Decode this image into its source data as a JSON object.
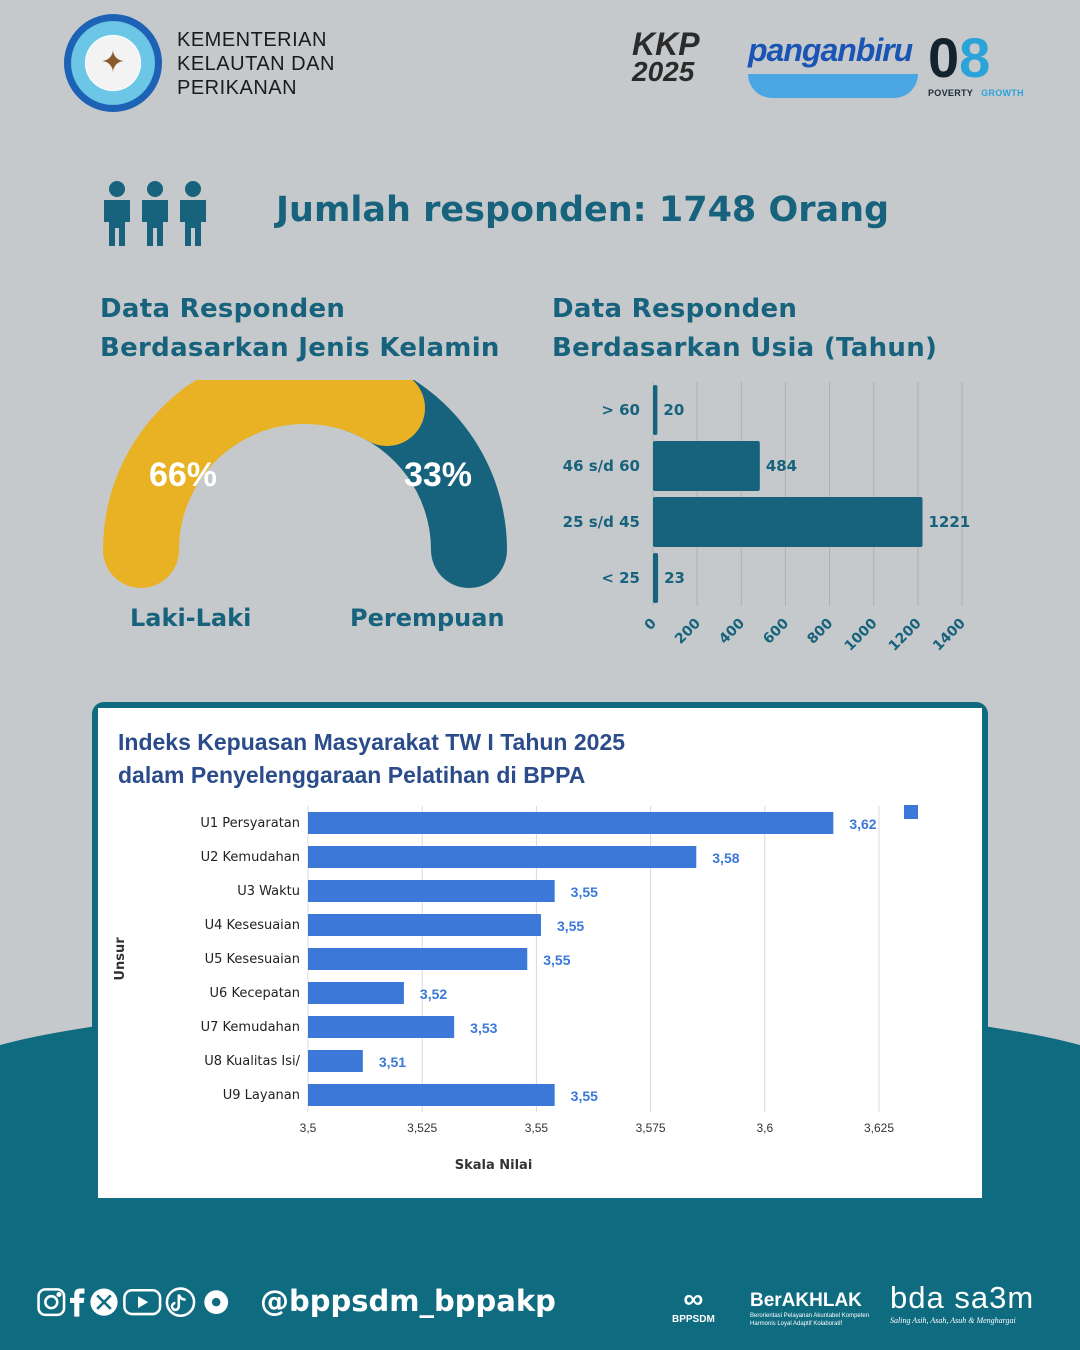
{
  "header": {
    "org_line1": "KEMENTERIAN",
    "org_line2": "KELAUTAN DAN",
    "org_line3": "PERIKANAN",
    "brand_kkp": "KKP",
    "brand_kkp_year": "2025",
    "brand_panganbiru": "panganbiru",
    "brand_08": "08",
    "brand_poverty": "POVERTY",
    "brand_growth": "GROWTH"
  },
  "headline": "Jumlah responden: 1748 Orang",
  "gender": {
    "title_line1": "Data Responden",
    "title_line2": "Berdasarkan Jenis Kelamin",
    "male_pct_label": "66%",
    "female_pct_label": "33%",
    "male_label": "Laki-Laki",
    "female_label": "Perempuan",
    "male_value": 66,
    "female_value": 33,
    "male_color": "#e8b224",
    "female_color": "#17627c"
  },
  "age": {
    "title_line1": "Data Responden",
    "title_line2": "Berdasarkan Usia (Tahun)"
  },
  "ikm": {
    "title_line1": "Indeks Kepuasan Masyarakat TW I Tahun 2025",
    "title_line2": "dalam Penyelenggaraan Pelatihan di BPPA"
  },
  "chart_data": [
    {
      "type": "bar",
      "orientation": "horizontal",
      "categories": [
        "> 60",
        "46 s/d 60",
        "25 s/d 45",
        "< 25"
      ],
      "values": [
        20,
        484,
        1221,
        23
      ],
      "data_labels": [
        "20",
        "484",
        "1221",
        "23"
      ],
      "xlim": [
        0,
        1400
      ],
      "xticks": [
        "0",
        "200",
        "400",
        "600",
        "800",
        "1000",
        "1200",
        "1400"
      ],
      "grid": true,
      "color": "#17627c"
    },
    {
      "type": "bar",
      "orientation": "horizontal",
      "title": "Indeks Kepuasan Masyarakat TW I Tahun 2025 dalam Penyelenggaraan Pelatihan di BPPA",
      "xlabel": "Skala Nilai",
      "ylabel": "Unsur",
      "categories": [
        "U1 Persyaratan",
        "U2 Kemudahan",
        "U3 Waktu",
        "U4 Kesesuaian",
        "U5 Kesesuaian",
        "U6 Kecepatan",
        "U7 Kemudahan",
        "U8 Kualitas Isi/",
        "U9 Layanan"
      ],
      "values": [
        3.615,
        3.585,
        3.554,
        3.551,
        3.548,
        3.521,
        3.532,
        3.512,
        3.554
      ],
      "data_labels": [
        "3,62",
        "3,58",
        "3,55",
        "3,55",
        "3,55",
        "3,52",
        "3,53",
        "3,51",
        "3,55"
      ],
      "xlim": [
        3.5,
        3.625
      ],
      "xticks": [
        "3,5",
        "3,525",
        "3,55",
        "3,575",
        "3,6",
        "3,625"
      ],
      "grid": true,
      "color": "#3b78d8"
    }
  ],
  "footer": {
    "handle": "@bppsdm_bppakp",
    "bppsdm": "BPPSDM",
    "berakhlak": "BerAKHLAK",
    "berakhlak_tagline": "Berorientasi Pelayanan Akuntabel Kompeten Harmonis Loyal Adaptif Kolaboratif",
    "bda": "bda sa3m",
    "bda_tagline": "Saling Asih, Asah, Asuh & Menghargai"
  }
}
